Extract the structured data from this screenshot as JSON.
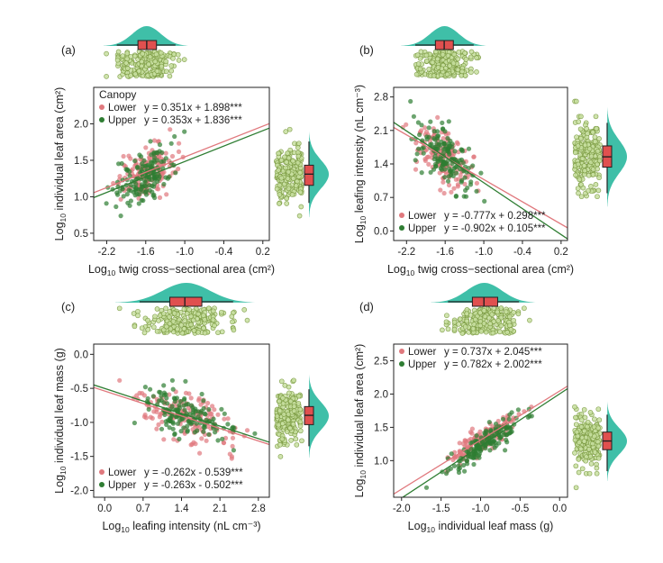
{
  "colors": {
    "lower": "#e0787d",
    "upper": "#2e7d32",
    "density": "#3fbfa8",
    "box": "#e0504f",
    "marg_point_fill": "#c8e0a0",
    "marg_point_stroke": "#7a9a40"
  },
  "chart_data": [
    {
      "type": "scatter",
      "panel_label": "(a)",
      "xlabel_prefix": "Log",
      "xlabel_sub": "10",
      "xlabel_rest": " twig cross−sectional area (cm²)",
      "ylabel_prefix": "Log",
      "ylabel_sub": "10",
      "ylabel_rest": " individual leaf area (cm²)",
      "x_ticks": [
        "-2.2",
        "-1.6",
        "-1.0",
        "-0.4",
        "0.2"
      ],
      "y_ticks": [
        "0.5",
        "1.0",
        "1.5",
        "2.0"
      ],
      "xlim": [
        -2.4,
        0.3
      ],
      "ylim": [
        0.4,
        2.5
      ],
      "grid": false,
      "legend": {
        "title": "Canopy",
        "placement": "top-left",
        "entries": [
          {
            "name": "Lower",
            "equation": "y = 0.351x + 1.898***"
          },
          {
            "name": "Upper",
            "equation": "y = 0.353x + 1.836***"
          }
        ]
      },
      "series": [
        {
          "name": "Lower",
          "slope": 0.351,
          "intercept": 1.898,
          "x_center": -1.6,
          "x_sd": 0.22,
          "resid_sd": 0.17
        },
        {
          "name": "Upper",
          "slope": 0.353,
          "intercept": 1.836,
          "x_center": -1.6,
          "x_sd": 0.22,
          "resid_sd": 0.17
        }
      ]
    },
    {
      "type": "scatter",
      "panel_label": "(b)",
      "xlabel_prefix": "Log",
      "xlabel_sub": "10",
      "xlabel_rest": " twig cross−sectional area (cm²)",
      "ylabel_prefix": "Log",
      "ylabel_sub": "10",
      "ylabel_rest": " leafing intensity (nL cm⁻³)",
      "x_ticks": [
        "-2.2",
        "-1.6",
        "-1.0",
        "-0.4",
        "0.2"
      ],
      "y_ticks": [
        "0.0",
        "0.7",
        "1.4",
        "2.1",
        "2.8"
      ],
      "xlim": [
        -2.4,
        0.3
      ],
      "ylim": [
        -0.2,
        3.0
      ],
      "grid": false,
      "legend": {
        "title": "",
        "placement": "bottom-left",
        "entries": [
          {
            "name": "Lower",
            "equation": "y = -0.777x + 0.298***"
          },
          {
            "name": "Upper",
            "equation": "y = -0.902x + 0.105***"
          }
        ]
      },
      "series": [
        {
          "name": "Lower",
          "slope": -0.777,
          "intercept": 0.298,
          "x_center": -1.6,
          "x_sd": 0.22,
          "resid_sd": 0.28
        },
        {
          "name": "Upper",
          "slope": -0.902,
          "intercept": 0.105,
          "x_center": -1.6,
          "x_sd": 0.22,
          "resid_sd": 0.28
        }
      ]
    },
    {
      "type": "scatter",
      "panel_label": "(c)",
      "xlabel_prefix": "Log",
      "xlabel_sub": "10",
      "xlabel_rest": " leafing intensity (nL cm⁻³)",
      "ylabel_prefix": "Log",
      "ylabel_sub": "10",
      "ylabel_rest": " individual leaf mass (g)",
      "x_ticks": [
        "0.0",
        "0.7",
        "1.4",
        "2.1",
        "2.8"
      ],
      "y_ticks": [
        "-2.0",
        "-1.5",
        "-1.0",
        "-0.5",
        "0.0"
      ],
      "xlim": [
        -0.2,
        3.0
      ],
      "ylim": [
        -2.1,
        0.15
      ],
      "grid": false,
      "legend": {
        "title": "",
        "placement": "bottom-left",
        "entries": [
          {
            "name": "Lower",
            "equation": "y = -0.262x - 0.539***"
          },
          {
            "name": "Upper",
            "equation": "y = -0.263x - 0.502***"
          }
        ]
      },
      "series": [
        {
          "name": "Lower",
          "slope": -0.262,
          "intercept": -0.539,
          "x_center": 1.5,
          "x_sd": 0.45,
          "resid_sd": 0.18
        },
        {
          "name": "Upper",
          "slope": -0.263,
          "intercept": -0.502,
          "x_center": 1.5,
          "x_sd": 0.45,
          "resid_sd": 0.18
        }
      ]
    },
    {
      "type": "scatter",
      "panel_label": "(d)",
      "xlabel_prefix": "Log",
      "xlabel_sub": "10",
      "xlabel_rest": " individual leaf mass (g)",
      "ylabel_prefix": "Log",
      "ylabel_sub": "10",
      "ylabel_rest": " individual leaf area (cm²)",
      "x_ticks": [
        "-2.0",
        "-1.5",
        "-1.0",
        "-0.5",
        "0.0"
      ],
      "y_ticks": [
        "1.0",
        "1.5",
        "2.0",
        "2.5"
      ],
      "xlim": [
        -2.1,
        0.1
      ],
      "ylim": [
        0.45,
        2.75
      ],
      "grid": false,
      "legend": {
        "title": "",
        "placement": "top-left",
        "entries": [
          {
            "name": "Lower",
            "equation": "y = 0.737x + 2.045***"
          },
          {
            "name": "Upper",
            "equation": "y = 0.782x + 2.002***"
          }
        ]
      },
      "series": [
        {
          "name": "Lower",
          "slope": 0.737,
          "intercept": 2.045,
          "x_center": -0.95,
          "x_sd": 0.22,
          "resid_sd": 0.1
        },
        {
          "name": "Upper",
          "slope": 0.782,
          "intercept": 2.002,
          "x_center": -0.95,
          "x_sd": 0.22,
          "resid_sd": 0.1
        }
      ]
    }
  ]
}
